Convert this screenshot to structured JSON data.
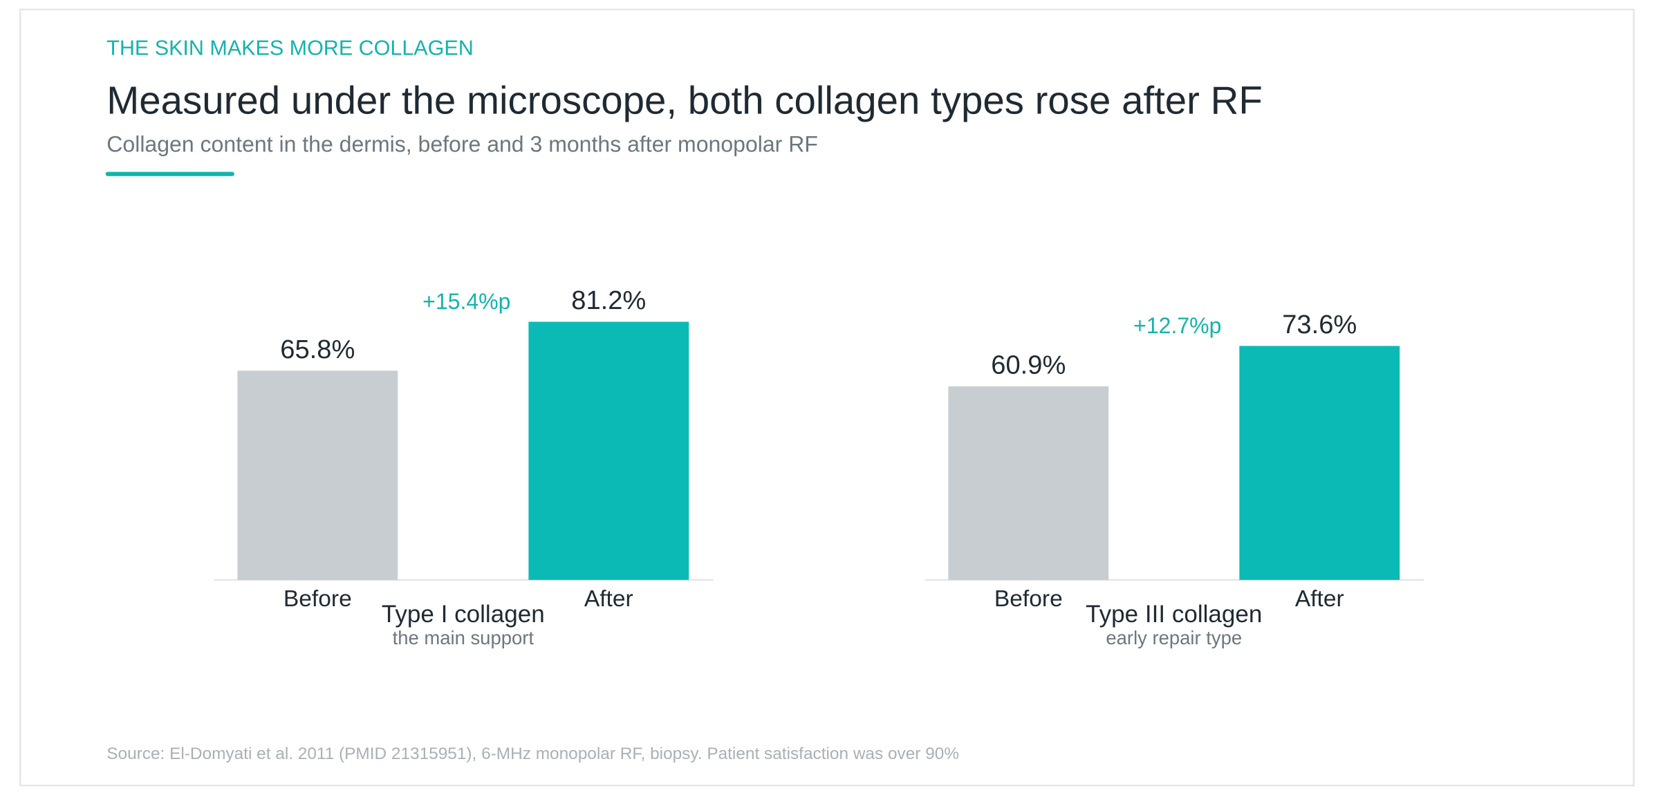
{
  "header": {
    "kicker": "THE SKIN MAKES MORE COLLAGEN",
    "title": "Measured under the microscope, both collagen types rose after RF",
    "subtitle": "Collagen content in the dermis, before and 3 months after monopolar RF"
  },
  "chart_data": [
    {
      "type": "bar",
      "title": "Type I collagen",
      "subtitle": "the main support",
      "categories": [
        "Before",
        "After"
      ],
      "values": [
        65.8,
        81.2
      ],
      "value_labels": [
        "65.8%",
        "81.2%"
      ],
      "colors": [
        "#c8cdd1",
        "#0cbab5"
      ],
      "annotation": "+15.4%p"
    },
    {
      "type": "bar",
      "title": "Type III collagen",
      "subtitle": "early repair type",
      "categories": [
        "Before",
        "After"
      ],
      "values": [
        60.9,
        73.6
      ],
      "value_labels": [
        "60.9%",
        "73.6%"
      ],
      "colors": [
        "#c8cdd1",
        "#0cbab5"
      ],
      "annotation": "+12.7%p"
    }
  ],
  "source": "Source: El-Domyati et al. 2011 (PMID 21315951), 6-MHz monopolar RF, biopsy. Patient satisfaction was over 90%"
}
